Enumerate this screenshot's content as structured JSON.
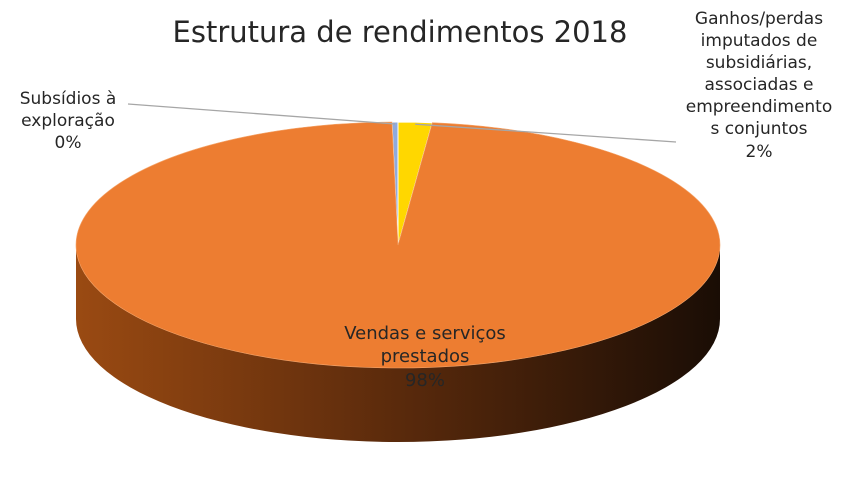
{
  "chart_data": {
    "type": "pie",
    "title": "Estrutura de rendimentos 2018",
    "slices": [
      {
        "label": [
          "Subsídios à",
          "exploração"
        ],
        "value_label": "0%",
        "value": 0.3,
        "color": "#8faadc"
      },
      {
        "label": [
          "Ganhos/perdas",
          "imputados de",
          "subsidiárias,",
          "associadas e",
          "empreendimento",
          "s conjuntos"
        ],
        "value_label": "2%",
        "value": 1.7,
        "color": "#ffd700"
      },
      {
        "label": [
          "Vendas e serviços",
          "prestados"
        ],
        "value_label": "98%",
        "value": 98.0,
        "color": "#ed7d31"
      }
    ],
    "style": "3d",
    "legend": "none"
  }
}
